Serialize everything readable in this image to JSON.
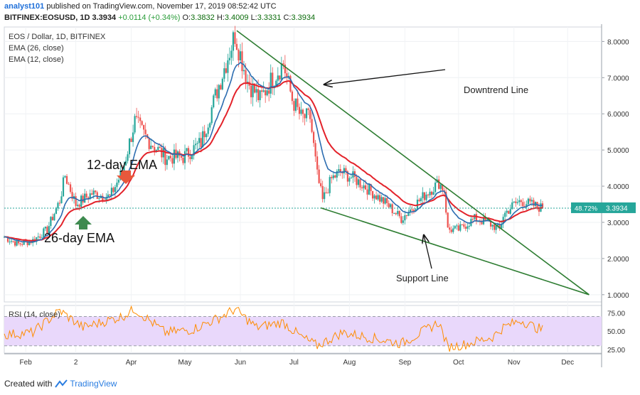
{
  "header": {
    "user": "analyst101",
    "published": "published on TradingView.com, November 17, 2019 08:52:42 UTC",
    "symbol": "BITFINEX:EOSUSD, 1D",
    "last": "3.3934",
    "change": "+0.0114 (+0.34%)",
    "o_label": "O:",
    "o_value": "3.3832",
    "h_label": "H:",
    "h_value": "3.4009",
    "l_label": "L:",
    "l_value": "3.3331",
    "c_label": "C:",
    "c_value": "3.3934"
  },
  "footer": {
    "created": "Created with",
    "brand": "TradingView"
  },
  "chart_data": {
    "type": "candlestick",
    "title": "EOS / Dollar, 1D, BITFINEX",
    "legend": [
      "EOS / Dollar, 1D, BITFINEX",
      "EMA (26, close)",
      "EMA (12, close)"
    ],
    "x_labels": [
      "Feb",
      "2",
      "Apr",
      "May",
      "Jun",
      "Jul",
      "Aug",
      "Sep",
      "Oct",
      "Nov",
      "Dec"
    ],
    "y_ticks": [
      "8.0000",
      "7.0000",
      "6.0000",
      "5.0000",
      "4.0000",
      "3.0000",
      "2.0000",
      "1.0000"
    ],
    "ylim": [
      0.8,
      8.4
    ],
    "price_badge_pct": "48.72%",
    "price_badge_value": "3.3934",
    "last_price": 3.3934,
    "colors": {
      "up": "#26a69a",
      "down": "#ef5350",
      "ema12": "#2b6cb0",
      "ema26": "#e3222a",
      "trend": "#2e7d32",
      "rsi": "#ff8c00",
      "rsi_band": "#e9d8fb",
      "badge": "#26a69a"
    },
    "price_keypoints": [
      [
        "Jan 20",
        2.6
      ],
      [
        "Jan 28",
        2.4
      ],
      [
        "Feb 5",
        2.5
      ],
      [
        "Feb 13",
        2.8
      ],
      [
        "Feb 20",
        3.6
      ],
      [
        "Feb 23",
        4.3
      ],
      [
        "Mar 1",
        3.5
      ],
      [
        "Mar 10",
        3.8
      ],
      [
        "Mar 20",
        3.7
      ],
      [
        "Mar 27",
        4.4
      ],
      [
        "Apr 3",
        5.8
      ],
      [
        "Apr 10",
        5.3
      ],
      [
        "Apr 20",
        4.8
      ],
      [
        "Apr 30",
        4.8
      ],
      [
        "May 10",
        5.2
      ],
      [
        "May 20",
        6.8
      ],
      [
        "May 29",
        8.2
      ],
      [
        "Jun 5",
        6.9
      ],
      [
        "Jun 12",
        6.4
      ],
      [
        "Jun 18",
        6.9
      ],
      [
        "Jun 25",
        7.4
      ],
      [
        "Jun 30",
        6.4
      ],
      [
        "Jul 5",
        5.9
      ],
      [
        "Jul 10",
        5.9
      ],
      [
        "Jul 14",
        4.3
      ],
      [
        "Jul 17",
        3.6
      ],
      [
        "Jul 22",
        4.2
      ],
      [
        "Jul 27",
        4.4
      ],
      [
        "Aug 4",
        4.2
      ],
      [
        "Aug 12",
        3.9
      ],
      [
        "Aug 22",
        3.5
      ],
      [
        "Aug 30",
        3.1
      ],
      [
        "Sep 5",
        3.4
      ],
      [
        "Sep 13",
        3.8
      ],
      [
        "Sep 20",
        4.1
      ],
      [
        "Sep 23",
        3.9
      ],
      [
        "Sep 25",
        2.8
      ],
      [
        "Oct 1",
        2.8
      ],
      [
        "Oct 10",
        3.1
      ],
      [
        "Oct 17",
        3.0
      ],
      [
        "Oct 24",
        2.8
      ],
      [
        "Oct 26",
        3.2
      ],
      [
        "Nov 1",
        3.5
      ],
      [
        "Nov 5",
        3.6
      ],
      [
        "Nov 10",
        3.5
      ],
      [
        "Nov 17",
        3.39
      ]
    ],
    "rsi": {
      "label": "RSI (14, close)",
      "y_ticks": [
        "75.00",
        "50.00",
        "25.00"
      ],
      "band": [
        30,
        70
      ],
      "ylim": [
        20,
        85
      ],
      "keypoints": [
        [
          "Jan 20",
          45
        ],
        [
          "Feb 5",
          48
        ],
        [
          "Feb 20",
          78
        ],
        [
          "Mar 5",
          55
        ],
        [
          "Mar 27",
          70
        ],
        [
          "Apr 3",
          80
        ],
        [
          "Apr 20",
          48
        ],
        [
          "May 5",
          52
        ],
        [
          "May 20",
          68
        ],
        [
          "May 29",
          80
        ],
        [
          "Jun 10",
          55
        ],
        [
          "Jun 25",
          62
        ],
        [
          "Jul 5",
          42
        ],
        [
          "Jul 14",
          30
        ],
        [
          "Jul 28",
          48
        ],
        [
          "Aug 15",
          40
        ],
        [
          "Aug 30",
          33
        ],
        [
          "Sep 13",
          52
        ],
        [
          "Sep 20",
          62
        ],
        [
          "Sep 25",
          28
        ],
        [
          "Oct 5",
          32
        ],
        [
          "Oct 20",
          42
        ],
        [
          "Oct 26",
          55
        ],
        [
          "Nov 5",
          65
        ],
        [
          "Nov 12",
          56
        ],
        [
          "Nov 17",
          52
        ]
      ]
    },
    "annotations": [
      {
        "id": "downtrend",
        "text": "Downtrend Line",
        "line": [
          [
            "May 30",
            8.3
          ],
          [
            "Dec 13",
            1.0
          ]
        ]
      },
      {
        "id": "support",
        "text": "Support Line",
        "line": [
          [
            "Jul 16",
            3.4
          ],
          [
            "Dec 13",
            1.0
          ]
        ]
      },
      {
        "id": "ema12",
        "text": "12-day EMA"
      },
      {
        "id": "ema26",
        "text": "26-day EMA"
      }
    ]
  }
}
